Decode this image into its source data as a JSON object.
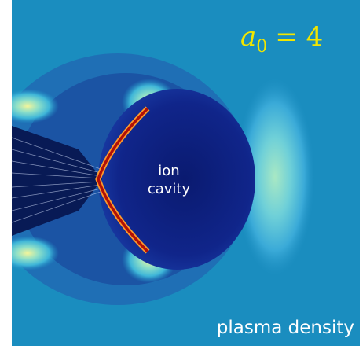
{
  "parameter_label": {
    "symbol": "a",
    "subscript": "0",
    "relation": "= 4"
  },
  "cavity_label": {
    "line1": "ion",
    "line2": "cavity"
  },
  "caption": "plasma density"
}
